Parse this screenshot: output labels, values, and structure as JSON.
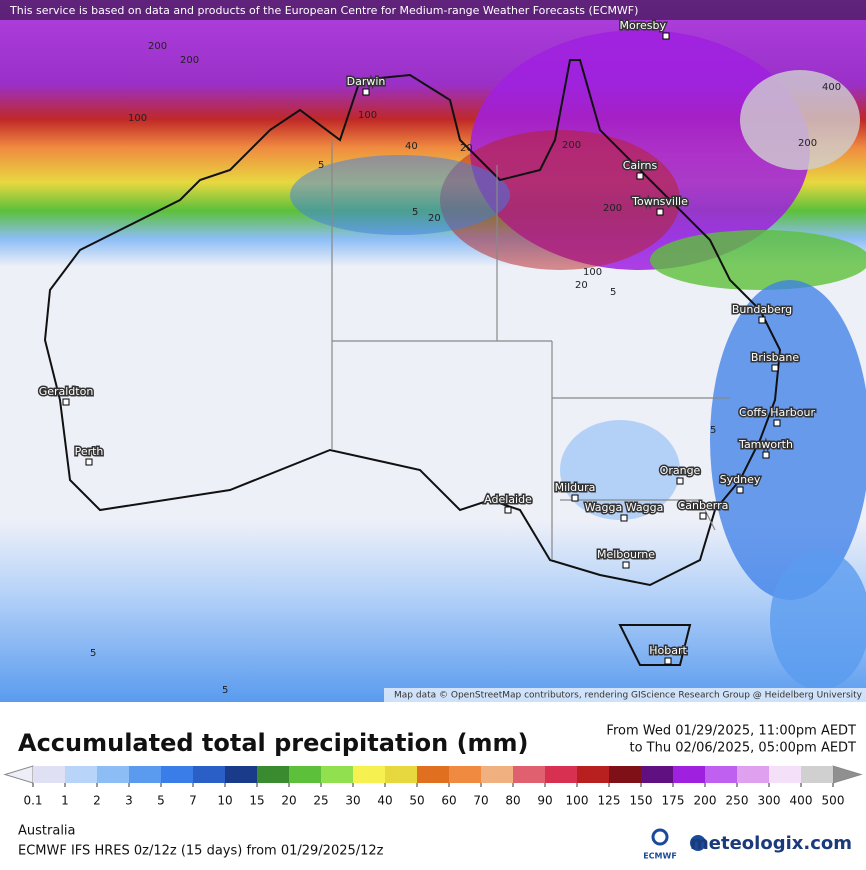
{
  "banner": "This service is based on data and products of the European Centre for Medium-range Weather Forecasts (ECMWF)",
  "attribution": "Map data © OpenStreetMap contributors, rendering GIScience Research Group @ Heidelberg University",
  "cities": [
    "Moresby",
    "Darwin",
    "Cairns",
    "Townsville",
    "Bundaberg",
    "Brisbane",
    "Geraldton",
    "Perth",
    "Coffs Harbour",
    "Tamworth",
    "Orange",
    "Sydney",
    "Mildura",
    "Wagga Wagga",
    "Canberra",
    "Adelaide",
    "Melbourne",
    "Hobart"
  ],
  "contour_labels": [
    "200",
    "200",
    "100",
    "100",
    "40",
    "20",
    "5",
    "200",
    "200",
    "400",
    "200",
    "100",
    "20",
    "5",
    "5",
    "20",
    "5",
    "5",
    "5"
  ],
  "title": "Accumulated total precipitation (mm)",
  "period_from": "From Wed 01/29/2025, 11:00pm AEDT",
  "period_to": "to Thu 02/06/2025, 05:00pm AEDT",
  "legend": {
    "ticks": [
      0.1,
      1,
      2,
      3,
      5,
      7,
      10,
      15,
      20,
      25,
      30,
      40,
      50,
      60,
      70,
      80,
      90,
      100,
      125,
      150,
      175,
      200,
      250,
      300,
      400,
      500
    ],
    "colors": [
      "#e0e0f5",
      "#b8d4f8",
      "#8cbdf5",
      "#5a9bef",
      "#3b7de8",
      "#2a5fc8",
      "#1a3a8a",
      "#3a8a30",
      "#5cc03a",
      "#90e050",
      "#f6f050",
      "#e8d840",
      "#e07020",
      "#f08a40",
      "#f0b080",
      "#e06070",
      "#d83050",
      "#b82020",
      "#801018",
      "#601080",
      "#a020e0",
      "#c060f0",
      "#e0a0f0",
      "#f4e0f8",
      "#d0d0d0"
    ],
    "under_color": "#eeeef8",
    "over_color": "#909090"
  },
  "region": "Australia",
  "model": "ECMWF IFS HRES 0z/12z (15 days) from 01/29/2025/12z",
  "logo_ecmwf": "ECMWF",
  "logo_site": "meteologix.com"
}
